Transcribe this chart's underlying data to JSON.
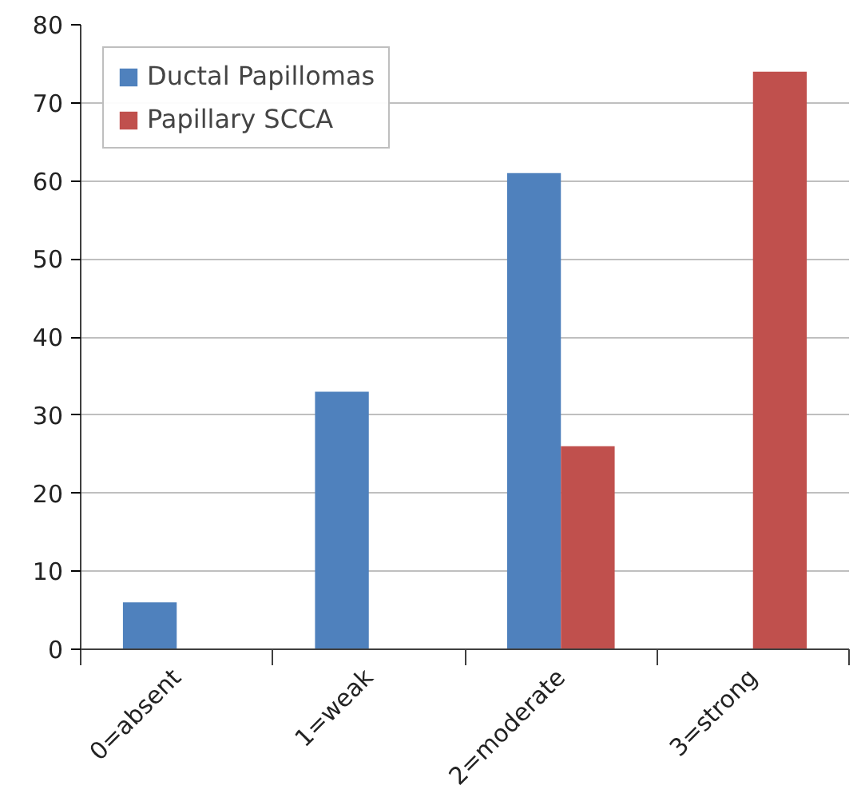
{
  "chart_data": {
    "type": "bar",
    "categories": [
      "0=absent",
      "1=weak",
      "2=moderate",
      "3=strong"
    ],
    "series": [
      {
        "name": "Ductal Papillomas",
        "color": "#4f81bd",
        "values": [
          6,
          33,
          61,
          0
        ]
      },
      {
        "name": "Papillary SCCA",
        "color": "#c0504d",
        "values": [
          0,
          0,
          26,
          74
        ]
      }
    ],
    "ylim": [
      0,
      80
    ],
    "yticks": [
      0,
      10,
      20,
      30,
      40,
      50,
      60,
      70,
      80
    ],
    "grid": "y",
    "legend": "top left"
  }
}
